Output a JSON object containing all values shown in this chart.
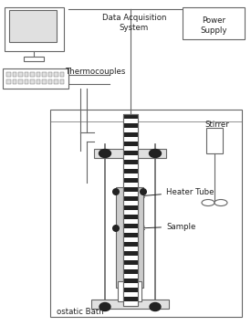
{
  "bg_color": "#ffffff",
  "line_color": "#666666",
  "dark_color": "#222222",
  "gray_fill": "#cccccc",
  "light_gray": "#e0e0e0",
  "label_computer": "Data Acquisition\nSystem",
  "label_thermocouples": "Thermocouples",
  "label_power": "Power\nSupply",
  "label_stirrer": "Stirrer",
  "label_heater": "Heater Tube",
  "label_sample": "Sample",
  "label_bath": "ostatic Bath",
  "figsize": [
    2.75,
    3.57
  ],
  "dpi": 100
}
